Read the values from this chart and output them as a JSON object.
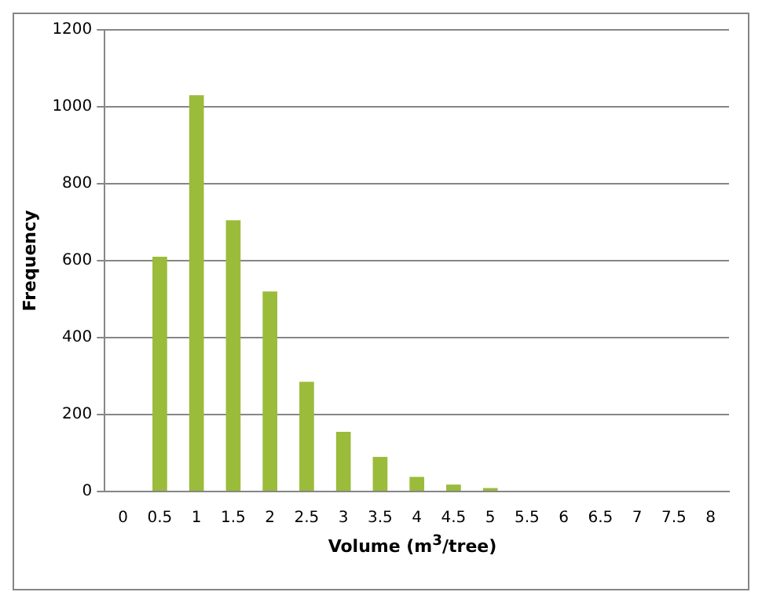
{
  "chart_data": {
    "type": "bar",
    "xlabel": "Volume (m$^{3}$/tree)",
    "ylabel": "Frequency",
    "categories": [
      "0",
      "0.5",
      "1",
      "1.5",
      "2",
      "2.5",
      "3",
      "3.5",
      "4",
      "4.5",
      "5",
      "5.5",
      "6",
      "6.5",
      "7",
      "7.5",
      "8"
    ],
    "values": [
      0,
      610,
      1030,
      705,
      520,
      285,
      155,
      90,
      38,
      18,
      9,
      0,
      0,
      0,
      0,
      0,
      0
    ],
    "color": "#9bbb3b",
    "ylim": [
      0,
      1200
    ],
    "yticks": [
      0,
      200,
      400,
      600,
      800,
      1000,
      1200
    ],
    "grid": "y",
    "legend": false
  }
}
